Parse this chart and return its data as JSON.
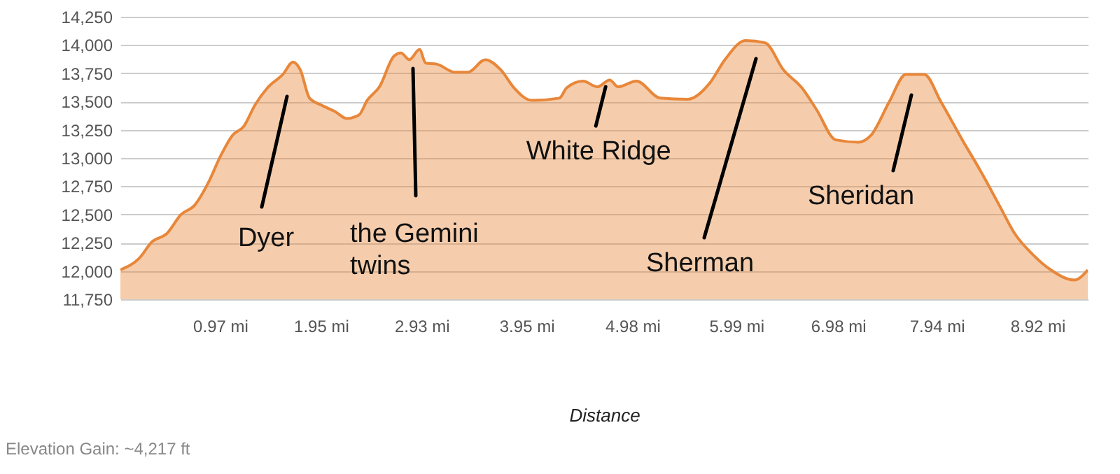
{
  "chart_data": {
    "type": "area",
    "xlabel": "Distance",
    "color": "#e8873a",
    "x": [
      0,
      0.18,
      0.31,
      0.45,
      0.59,
      0.72,
      0.86,
      0.97,
      1.09,
      1.2,
      1.31,
      1.43,
      1.58,
      1.68,
      1.75,
      1.84,
      1.95,
      2.09,
      2.2,
      2.32,
      2.4,
      2.52,
      2.66,
      2.73,
      2.81,
      2.91,
      2.97,
      3.08,
      3.25,
      3.38,
      3.55,
      3.7,
      3.83,
      4.0,
      4.27,
      4.34,
      4.5,
      4.64,
      4.76,
      4.84,
      5.02,
      5.25,
      5.52,
      5.73,
      5.88,
      6.08,
      6.27,
      6.45,
      6.63,
      6.77,
      6.96,
      7.18,
      7.3,
      7.48,
      7.64,
      7.82,
      7.98,
      8.19,
      8.37,
      8.55,
      8.7,
      8.87,
      9.05,
      9.28,
      9.41
    ],
    "values": [
      12010,
      12110,
      12260,
      12330,
      12500,
      12580,
      12790,
      13010,
      13200,
      13280,
      13470,
      13620,
      13740,
      13850,
      13780,
      13530,
      13470,
      13410,
      13350,
      13380,
      13510,
      13630,
      13900,
      13930,
      13870,
      13960,
      13840,
      13830,
      13760,
      13760,
      13870,
      13780,
      13620,
      13510,
      13530,
      13620,
      13680,
      13630,
      13690,
      13630,
      13680,
      13530,
      13520,
      13660,
      13870,
      14040,
      14020,
      13780,
      13620,
      13430,
      13160,
      13140,
      13200,
      13500,
      13740,
      13740,
      13500,
      13160,
      12880,
      12580,
      12330,
      12150,
      12010,
      11920,
      12010
    ],
    "xlim": [
      0,
      9.41
    ],
    "xticks": [
      {
        "value": 0.97,
        "label": "0.97 mi"
      },
      {
        "value": 1.95,
        "label": "1.95 mi"
      },
      {
        "value": 2.93,
        "label": "2.93 mi"
      },
      {
        "value": 3.95,
        "label": "3.95 mi"
      },
      {
        "value": 4.98,
        "label": "4.98 mi"
      },
      {
        "value": 5.99,
        "label": "5.99 mi"
      },
      {
        "value": 6.98,
        "label": "6.98 mi"
      },
      {
        "value": 7.94,
        "label": "7.94 mi"
      },
      {
        "value": 8.92,
        "label": "8.92 mi"
      }
    ],
    "ylim": [
      11750,
      14250
    ],
    "yticks": [
      {
        "value": 11750,
        "label": "11,750"
      },
      {
        "value": 12000,
        "label": "12,000"
      },
      {
        "value": 12250,
        "label": "12,250"
      },
      {
        "value": 12500,
        "label": "12,500"
      },
      {
        "value": 12750,
        "label": "12,750"
      },
      {
        "value": 13000,
        "label": "13,000"
      },
      {
        "value": 13250,
        "label": "13,250"
      },
      {
        "value": 13500,
        "label": "13,500"
      },
      {
        "value": 13750,
        "label": "13,750"
      },
      {
        "value": 14000,
        "label": "14,000"
      },
      {
        "value": 14250,
        "label": "14,250"
      }
    ],
    "grid": "y",
    "annotations": [
      "Dyer",
      "the Gemini\ntwins",
      {
        "text": "White Ridge",
        "x": 4.72,
        "y": 13630
      },
      "Sherman",
      "Sheridan",
      "Elevation Gain: ~4,217 ft"
    ]
  }
}
